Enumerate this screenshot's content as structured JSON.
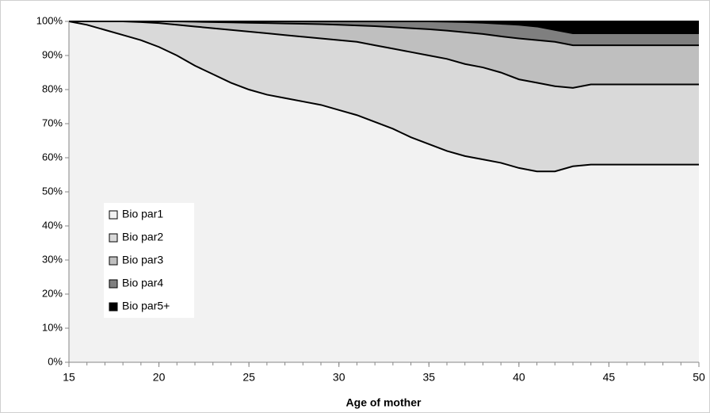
{
  "chart_data": {
    "type": "stacked_area_percent",
    "x_label": "Age of mother",
    "x": [
      15,
      16,
      17,
      18,
      19,
      20,
      21,
      22,
      23,
      24,
      25,
      26,
      27,
      28,
      29,
      30,
      31,
      32,
      33,
      34,
      35,
      36,
      37,
      38,
      39,
      40,
      41,
      42,
      43,
      44,
      45,
      46,
      47,
      48,
      49,
      50
    ],
    "series": [
      {
        "name": "Bio par1",
        "color": "#f2f2f2",
        "values": [
          100,
          99,
          97.5,
          96,
          94.5,
          92.5,
          90,
          87,
          84.5,
          82,
          80,
          78.5,
          77.5,
          76.5,
          75.5,
          74,
          72.5,
          70.5,
          68.5,
          66,
          64,
          62,
          60.5,
          59.5,
          58.5,
          57,
          56,
          56,
          57.5,
          58,
          58,
          58,
          58,
          58,
          58,
          58
        ]
      },
      {
        "name": "Bio par2",
        "color": "#d9d9d9",
        "values": [
          0,
          1,
          2.5,
          4,
          5.3,
          7,
          9,
          11.5,
          13.5,
          15.5,
          17,
          18,
          18.5,
          19,
          19.5,
          20.5,
          21.5,
          22.5,
          23.5,
          25,
          26,
          27,
          27,
          27,
          26.5,
          26,
          26,
          25,
          23,
          23.5,
          23.5,
          23.5,
          23.5,
          23.5,
          23.5,
          23.5
        ]
      },
      {
        "name": "Bio par3",
        "color": "#bfbfbf",
        "values": [
          0,
          0,
          0,
          0,
          0.2,
          0.5,
          1,
          1.4,
          1.8,
          2.2,
          2.6,
          3,
          3.4,
          3.8,
          4.2,
          4.5,
          4.8,
          5.6,
          6.3,
          7,
          7.7,
          8.3,
          9.3,
          9.8,
          10.6,
          12,
          12.5,
          13,
          12.5,
          11.5,
          11.5,
          11.5,
          11.5,
          11.5,
          11.5,
          11.5
        ]
      },
      {
        "name": "Bio par4",
        "color": "#7f7f7f",
        "values": [
          0,
          0,
          0,
          0,
          0,
          0,
          0,
          0.1,
          0.2,
          0.3,
          0.4,
          0.5,
          0.6,
          0.7,
          0.8,
          1,
          1.2,
          1.4,
          1.7,
          2,
          2.3,
          2.6,
          3,
          3.3,
          3.7,
          4,
          4,
          3.5,
          3.5,
          3.5,
          3.5,
          3.5,
          3.5,
          3.5,
          3.5,
          3.5
        ]
      },
      {
        "name": "Bio par5+",
        "color": "#000000",
        "values": [
          0,
          0,
          0,
          0,
          0,
          0,
          0,
          0,
          0,
          0,
          0,
          0,
          0,
          0,
          0,
          0,
          0,
          0,
          0,
          0,
          0,
          0.1,
          0.2,
          0.4,
          0.7,
          1,
          1.5,
          2.5,
          3.5,
          3.5,
          3.5,
          3.5,
          3.5,
          3.5,
          3.5,
          3.5
        ]
      }
    ],
    "xlim": [
      15,
      50
    ],
    "xticks": [
      15,
      20,
      25,
      30,
      35,
      40,
      45,
      50
    ],
    "ylim": [
      0,
      100
    ],
    "yticks": [
      {
        "value": 0,
        "label": "0%"
      },
      {
        "value": 10,
        "label": "10%"
      },
      {
        "value": 20,
        "label": "20%"
      },
      {
        "value": 30,
        "label": "30%"
      },
      {
        "value": 40,
        "label": "40%"
      },
      {
        "value": 50,
        "label": "50%"
      },
      {
        "value": 60,
        "label": "60%"
      },
      {
        "value": 70,
        "label": "70%"
      },
      {
        "value": 80,
        "label": "80%"
      },
      {
        "value": 90,
        "label": "90%"
      },
      {
        "value": 100,
        "label": "100%"
      }
    ],
    "legend": "lower-left"
  }
}
